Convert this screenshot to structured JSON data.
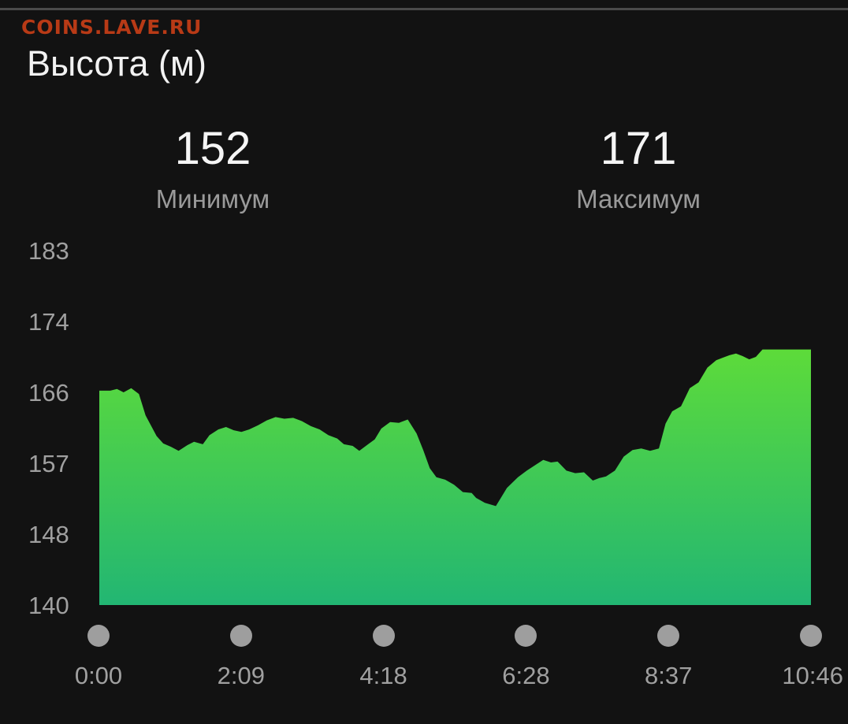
{
  "watermark": "COINS.LAVE.RU",
  "title": "Высота (м)",
  "stats": {
    "min_value": "152",
    "min_label": "Минимум",
    "max_value": "171",
    "max_label": "Максимум"
  },
  "colors": {
    "background": "#121212",
    "area_top": "#5ddb3a",
    "area_bottom": "#22b673",
    "axis_text": "#a0a0a0",
    "watermark": "#b83a16"
  },
  "chart_data": {
    "type": "area",
    "title": "Высота (м)",
    "y_ticks": [
      "183",
      "174",
      "166",
      "157",
      "148",
      "140"
    ],
    "x_ticks": [
      "0:00",
      "2:09",
      "4:18",
      "6:28",
      "8:37",
      "10:46"
    ],
    "ylim": [
      140,
      183
    ],
    "xlim_minutes": [
      0,
      646
    ],
    "grid": false,
    "series": [
      {
        "x_minutes": [
          0,
          10,
          16,
          22,
          29,
          36,
          42,
          52,
          58,
          65,
          72,
          80,
          86,
          94,
          100,
          108,
          115,
          122,
          129,
          136,
          144,
          152,
          160,
          168,
          176,
          184,
          192,
          200,
          208,
          216,
          222,
          230,
          236,
          244,
          250,
          256,
          264,
          272,
          280,
          288,
          294,
          300,
          306,
          314,
          322,
          330,
          338,
          342,
          350,
          360,
          370,
          380,
          388,
          396,
          403,
          410,
          416,
          424,
          432,
          440,
          448,
          454,
          460,
          468,
          476,
          484,
          492,
          500,
          508,
          514,
          520,
          528,
          536,
          544,
          552,
          560,
          566,
          572,
          578,
          584,
          590,
          596,
          602,
          608,
          614,
          620,
          626,
          632,
          638,
          643,
          646
        ],
        "y": [
          166,
          166,
          166.2,
          165.8,
          166.3,
          165.6,
          163,
          160.5,
          159.6,
          159.2,
          158.7,
          159.4,
          159.8,
          159.5,
          160.6,
          161.3,
          161.6,
          161.2,
          161.0,
          161.3,
          161.8,
          162.4,
          162.8,
          162.6,
          162.7,
          162.3,
          161.7,
          161.3,
          160.6,
          160.2,
          159.5,
          159.3,
          158.7,
          159.5,
          160.1,
          161.4,
          162.2,
          162.1,
          162.5,
          160.8,
          158.8,
          156.6,
          155.5,
          155.2,
          154.6,
          153.7,
          153.6,
          153.0,
          152.4,
          152.0,
          154.2,
          155.5,
          156.3,
          157.0,
          157.6,
          157.3,
          157.4,
          156.3,
          156.0,
          156.1,
          155.1,
          155.4,
          155.6,
          156.3,
          158.0,
          158.8,
          159.0,
          158.7,
          159.0,
          162.0,
          163.5,
          164.1,
          166.3,
          167.0,
          168.8,
          169.7,
          170.0,
          170.3,
          170.5,
          170.2,
          169.8,
          170.1,
          171,
          171,
          171,
          171,
          171,
          171,
          171,
          171,
          171
        ]
      }
    ]
  }
}
